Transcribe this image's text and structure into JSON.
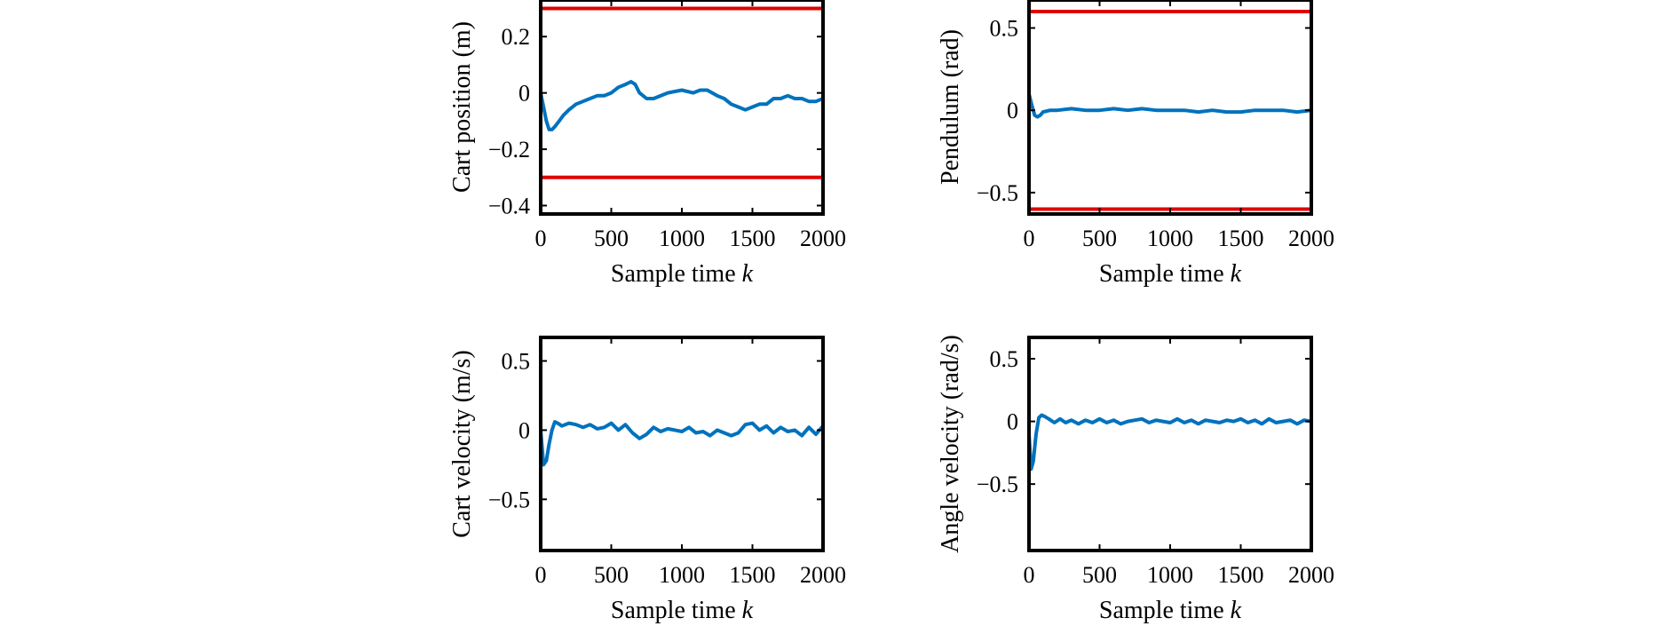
{
  "colors": {
    "series": "#0072BD",
    "limit": "#E00000",
    "axes": "#000000"
  },
  "chart_data": [
    {
      "type": "line",
      "ylabel": "Cart position (m)",
      "xlabel": "Sample time",
      "xlabel_italic": "k",
      "xlim": [
        0,
        2000
      ],
      "ylim": [
        -0.43,
        0.33
      ],
      "xticks": [
        "0",
        "500",
        "1000",
        "1500",
        "2000"
      ],
      "xtick_values": [
        0,
        500,
        1000,
        1500,
        2000
      ],
      "yticks": [
        "−0.4",
        "−0.2",
        "0",
        "0.2"
      ],
      "ytick_values": [
        -0.4,
        -0.2,
        0,
        0.2
      ],
      "limits": [
        0.3,
        -0.3
      ],
      "grid": false,
      "x": [
        0,
        20,
        40,
        60,
        80,
        100,
        130,
        160,
        200,
        250,
        300,
        350,
        400,
        450,
        500,
        550,
        600,
        640,
        670,
        700,
        750,
        800,
        900,
        1000,
        1080,
        1130,
        1180,
        1250,
        1300,
        1350,
        1400,
        1450,
        1500,
        1550,
        1600,
        1650,
        1700,
        1750,
        1800,
        1850,
        1900,
        1950,
        2000
      ],
      "y": [
        0.0,
        -0.05,
        -0.1,
        -0.13,
        -0.13,
        -0.12,
        -0.1,
        -0.08,
        -0.06,
        -0.04,
        -0.03,
        -0.02,
        -0.01,
        -0.01,
        0.0,
        0.02,
        0.03,
        0.04,
        0.03,
        0.0,
        -0.02,
        -0.02,
        0.0,
        0.01,
        0.0,
        0.01,
        0.01,
        -0.01,
        -0.02,
        -0.04,
        -0.05,
        -0.06,
        -0.05,
        -0.04,
        -0.04,
        -0.02,
        -0.02,
        -0.01,
        -0.02,
        -0.02,
        -0.03,
        -0.03,
        -0.02
      ]
    },
    {
      "type": "line",
      "ylabel": "Pendulum (rad)",
      "xlabel": "Sample time",
      "xlabel_italic": "k",
      "xlim": [
        0,
        2000
      ],
      "ylim": [
        -0.63,
        0.67
      ],
      "xticks": [
        "0",
        "500",
        "1000",
        "1500",
        "2000"
      ],
      "xtick_values": [
        0,
        500,
        1000,
        1500,
        2000
      ],
      "yticks": [
        "0.5",
        "0",
        "−0.5"
      ],
      "ytick_values": [
        0.5,
        0,
        -0.5
      ],
      "limits": [
        0.6,
        -0.6
      ],
      "grid": false,
      "x": [
        0,
        20,
        40,
        60,
        80,
        100,
        150,
        200,
        300,
        400,
        500,
        600,
        700,
        800,
        900,
        1000,
        1100,
        1200,
        1300,
        1400,
        1500,
        1600,
        1700,
        1800,
        1900,
        2000
      ],
      "y": [
        0.1,
        0.03,
        -0.03,
        -0.04,
        -0.03,
        -0.01,
        0.0,
        0.0,
        0.01,
        0.0,
        0.0,
        0.01,
        0.0,
        0.01,
        0.0,
        0.0,
        0.0,
        -0.01,
        0.0,
        -0.01,
        -0.01,
        0.0,
        0.0,
        0.0,
        -0.01,
        0.0
      ]
    },
    {
      "type": "line",
      "ylabel": "Cart velocity (m/s)",
      "xlabel": "Sample time",
      "xlabel_italic": "k",
      "xlim": [
        0,
        2000
      ],
      "ylim": [
        -0.87,
        0.67
      ],
      "xticks": [
        "0",
        "500",
        "1000",
        "1500",
        "2000"
      ],
      "xtick_values": [
        0,
        500,
        1000,
        1500,
        2000
      ],
      "yticks": [
        "0.5",
        "0",
        "−0.5"
      ],
      "ytick_values": [
        0.5,
        0,
        -0.5
      ],
      "limits": [],
      "grid": false,
      "x": [
        0,
        20,
        40,
        60,
        80,
        100,
        120,
        150,
        200,
        250,
        300,
        350,
        400,
        450,
        500,
        550,
        600,
        650,
        700,
        750,
        800,
        850,
        900,
        950,
        1000,
        1050,
        1100,
        1150,
        1200,
        1250,
        1300,
        1350,
        1400,
        1450,
        1500,
        1550,
        1600,
        1650,
        1700,
        1750,
        1800,
        1850,
        1900,
        1950,
        2000
      ],
      "y": [
        0.0,
        -0.25,
        -0.22,
        -0.1,
        0.0,
        0.06,
        0.05,
        0.03,
        0.05,
        0.04,
        0.02,
        0.04,
        0.01,
        0.02,
        0.05,
        0.0,
        0.04,
        -0.02,
        -0.06,
        -0.03,
        0.02,
        -0.01,
        0.01,
        0.0,
        -0.01,
        0.02,
        -0.02,
        -0.01,
        -0.04,
        0.0,
        -0.02,
        -0.04,
        -0.02,
        0.04,
        0.05,
        0.0,
        0.03,
        -0.02,
        0.02,
        -0.01,
        0.0,
        -0.04,
        0.02,
        -0.03,
        0.03
      ]
    },
    {
      "type": "line",
      "ylabel": "Angle velocity (rad/s)",
      "xlabel": "Sample time",
      "xlabel_italic": "k",
      "xlim": [
        0,
        2000
      ],
      "ylim": [
        -1.03,
        0.67
      ],
      "xticks": [
        "0",
        "500",
        "1000",
        "1500",
        "2000"
      ],
      "xtick_values": [
        0,
        500,
        1000,
        1500,
        2000
      ],
      "yticks": [
        "0.5",
        "0",
        "−0.5"
      ],
      "ytick_values": [
        0.5,
        0,
        -0.5
      ],
      "limits": [],
      "grid": false,
      "x": [
        0,
        15,
        30,
        50,
        70,
        90,
        110,
        140,
        180,
        220,
        260,
        300,
        350,
        400,
        450,
        500,
        550,
        600,
        650,
        700,
        750,
        800,
        850,
        900,
        950,
        1000,
        1050,
        1100,
        1150,
        1200,
        1250,
        1300,
        1350,
        1400,
        1450,
        1500,
        1550,
        1600,
        1650,
        1700,
        1750,
        1800,
        1850,
        1900,
        1950,
        2000
      ],
      "y": [
        -0.1,
        -0.38,
        -0.32,
        -0.1,
        0.03,
        0.05,
        0.04,
        0.02,
        -0.01,
        0.02,
        -0.01,
        0.01,
        -0.02,
        0.01,
        -0.01,
        0.02,
        -0.01,
        0.01,
        -0.02,
        0.0,
        0.01,
        0.02,
        -0.01,
        0.01,
        0.0,
        -0.01,
        0.02,
        -0.01,
        0.01,
        -0.02,
        0.01,
        0.0,
        -0.01,
        0.01,
        0.0,
        0.02,
        -0.01,
        0.01,
        -0.02,
        0.02,
        -0.01,
        0.0,
        0.01,
        -0.02,
        0.01,
        0.0
      ]
    }
  ]
}
